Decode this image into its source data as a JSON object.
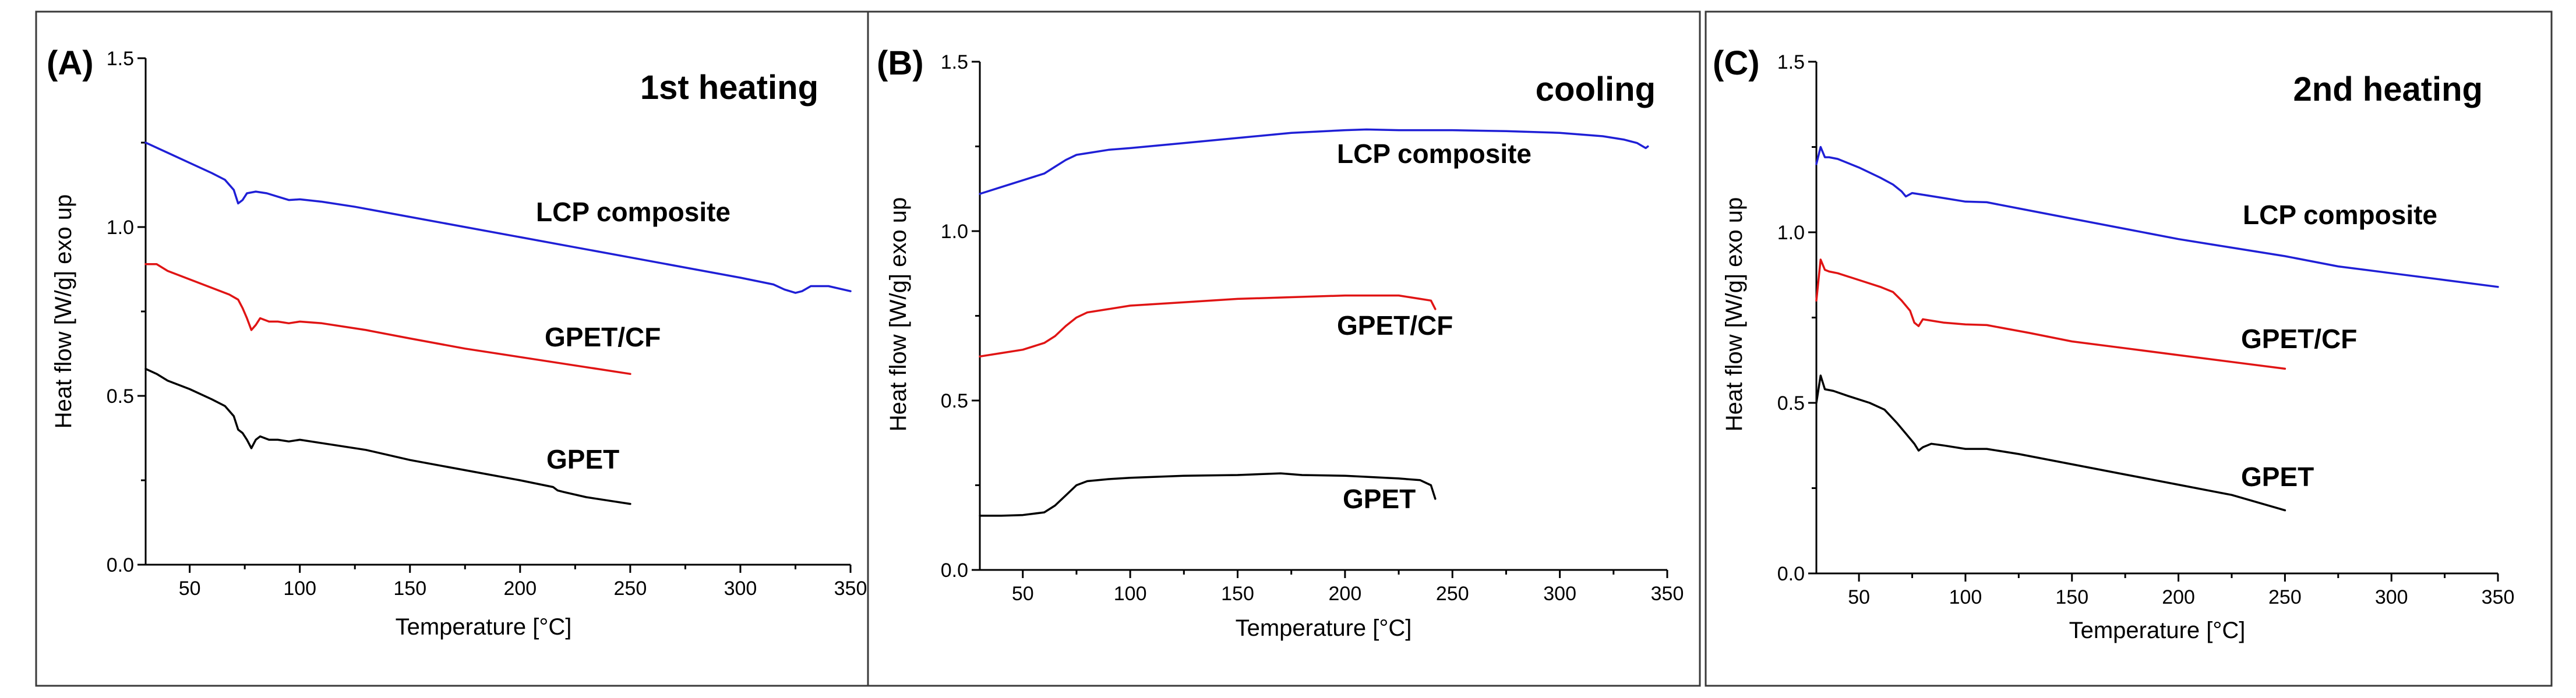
{
  "figure": {
    "colors": {
      "lcp": "#1f1fd6",
      "gpet_cf": "#e01414",
      "gpet": "#000000"
    }
  },
  "chart_data": [
    {
      "type": "line",
      "panel": "(A)",
      "title": "1st heating",
      "xlabel": "Temperature [°C]",
      "ylabel": "Heat flow [W/g] exo up",
      "xlim": [
        30,
        350
      ],
      "ylim": [
        0.0,
        1.5
      ],
      "xticks": [
        "50",
        "100",
        "150",
        "200",
        "250",
        "300",
        "350"
      ],
      "yticks": [
        "0.0",
        "0.5",
        "1.0",
        "1.5"
      ],
      "series": [
        {
          "name": "LCP composite",
          "color": "#1f1fd6",
          "points": [
            [
              30,
              1.25
            ],
            [
              40,
              1.22
            ],
            [
              50,
              1.19
            ],
            [
              60,
              1.16
            ],
            [
              66,
              1.14
            ],
            [
              70,
              1.11
            ],
            [
              72,
              1.07
            ],
            [
              74,
              1.08
            ],
            [
              76,
              1.1
            ],
            [
              80,
              1.105
            ],
            [
              85,
              1.1
            ],
            [
              90,
              1.09
            ],
            [
              95,
              1.08
            ],
            [
              100,
              1.082
            ],
            [
              110,
              1.075
            ],
            [
              125,
              1.06
            ],
            [
              150,
              1.03
            ],
            [
              175,
              1.0
            ],
            [
              200,
              0.97
            ],
            [
              225,
              0.94
            ],
            [
              250,
              0.91
            ],
            [
              275,
              0.88
            ],
            [
              300,
              0.85
            ],
            [
              315,
              0.83
            ],
            [
              320,
              0.815
            ],
            [
              325,
              0.805
            ],
            [
              328,
              0.81
            ],
            [
              332,
              0.825
            ],
            [
              340,
              0.825
            ],
            [
              350,
              0.81
            ]
          ]
        },
        {
          "name": "GPET/CF",
          "color": "#e01414",
          "points": [
            [
              30,
              0.89
            ],
            [
              35,
              0.89
            ],
            [
              40,
              0.87
            ],
            [
              50,
              0.845
            ],
            [
              60,
              0.82
            ],
            [
              68,
              0.8
            ],
            [
              72,
              0.785
            ],
            [
              74,
              0.76
            ],
            [
              76,
              0.73
            ],
            [
              78,
              0.695
            ],
            [
              80,
              0.71
            ],
            [
              82,
              0.73
            ],
            [
              86,
              0.72
            ],
            [
              90,
              0.72
            ],
            [
              95,
              0.715
            ],
            [
              100,
              0.72
            ],
            [
              110,
              0.715
            ],
            [
              130,
              0.695
            ],
            [
              150,
              0.67
            ],
            [
              175,
              0.64
            ],
            [
              200,
              0.615
            ],
            [
              225,
              0.59
            ],
            [
              250,
              0.565
            ]
          ]
        },
        {
          "name": "GPET",
          "color": "#000000",
          "points": [
            [
              30,
              0.58
            ],
            [
              35,
              0.565
            ],
            [
              40,
              0.545
            ],
            [
              50,
              0.52
            ],
            [
              60,
              0.49
            ],
            [
              66,
              0.47
            ],
            [
              70,
              0.44
            ],
            [
              72,
              0.4
            ],
            [
              74,
              0.39
            ],
            [
              76,
              0.37
            ],
            [
              78,
              0.345
            ],
            [
              80,
              0.37
            ],
            [
              82,
              0.38
            ],
            [
              86,
              0.37
            ],
            [
              90,
              0.37
            ],
            [
              95,
              0.365
            ],
            [
              100,
              0.37
            ],
            [
              110,
              0.36
            ],
            [
              130,
              0.34
            ],
            [
              150,
              0.31
            ],
            [
              175,
              0.28
            ],
            [
              200,
              0.25
            ],
            [
              215,
              0.23
            ],
            [
              217,
              0.22
            ],
            [
              220,
              0.215
            ],
            [
              230,
              0.2
            ],
            [
              240,
              0.19
            ],
            [
              250,
              0.18
            ]
          ]
        }
      ]
    },
    {
      "type": "line",
      "panel": "(B)",
      "title": "cooling",
      "xlabel": "Temperature [°C]",
      "ylabel": "Heat flow [W/g] exo up",
      "xlim": [
        30,
        350
      ],
      "ylim": [
        0.0,
        1.5
      ],
      "xticks": [
        "50",
        "100",
        "150",
        "200",
        "250",
        "300",
        "350"
      ],
      "yticks": [
        "0.0",
        "0.5",
        "1.0",
        "1.5"
      ],
      "series": [
        {
          "name": "LCP composite",
          "color": "#1f1fd6",
          "points": [
            [
              30,
              1.11
            ],
            [
              40,
              1.13
            ],
            [
              50,
              1.15
            ],
            [
              60,
              1.17
            ],
            [
              65,
              1.19
            ],
            [
              70,
              1.21
            ],
            [
              75,
              1.225
            ],
            [
              80,
              1.23
            ],
            [
              90,
              1.24
            ],
            [
              100,
              1.245
            ],
            [
              125,
              1.26
            ],
            [
              150,
              1.275
            ],
            [
              175,
              1.29
            ],
            [
              200,
              1.298
            ],
            [
              210,
              1.3
            ],
            [
              225,
              1.298
            ],
            [
              250,
              1.298
            ],
            [
              275,
              1.295
            ],
            [
              300,
              1.29
            ],
            [
              320,
              1.28
            ],
            [
              330,
              1.27
            ],
            [
              336,
              1.26
            ],
            [
              340,
              1.245
            ],
            [
              341,
              1.25
            ]
          ]
        },
        {
          "name": "GPET/CF",
          "color": "#e01414",
          "points": [
            [
              30,
              0.63
            ],
            [
              40,
              0.64
            ],
            [
              50,
              0.65
            ],
            [
              60,
              0.67
            ],
            [
              65,
              0.69
            ],
            [
              70,
              0.72
            ],
            [
              75,
              0.745
            ],
            [
              80,
              0.76
            ],
            [
              90,
              0.77
            ],
            [
              100,
              0.78
            ],
            [
              125,
              0.79
            ],
            [
              150,
              0.8
            ],
            [
              175,
              0.805
            ],
            [
              200,
              0.81
            ],
            [
              225,
              0.81
            ],
            [
              235,
              0.8
            ],
            [
              240,
              0.795
            ],
            [
              242,
              0.77
            ]
          ]
        },
        {
          "name": "GPET",
          "color": "#000000",
          "points": [
            [
              30,
              0.16
            ],
            [
              40,
              0.16
            ],
            [
              50,
              0.162
            ],
            [
              60,
              0.17
            ],
            [
              65,
              0.19
            ],
            [
              70,
              0.22
            ],
            [
              75,
              0.25
            ],
            [
              80,
              0.262
            ],
            [
              90,
              0.268
            ],
            [
              100,
              0.272
            ],
            [
              125,
              0.278
            ],
            [
              150,
              0.28
            ],
            [
              170,
              0.285
            ],
            [
              180,
              0.28
            ],
            [
              200,
              0.278
            ],
            [
              225,
              0.27
            ],
            [
              235,
              0.265
            ],
            [
              240,
              0.25
            ],
            [
              242,
              0.21
            ]
          ]
        }
      ]
    },
    {
      "type": "line",
      "panel": "(C)",
      "title": "2nd heating",
      "xlabel": "Temperature [°C]",
      "ylabel": "Heat flow [W/g] exo up",
      "xlim": [
        30,
        350
      ],
      "ylim": [
        0.0,
        1.5
      ],
      "xticks": [
        "50",
        "100",
        "150",
        "200",
        "250",
        "300",
        "350"
      ],
      "yticks": [
        "0.0",
        "0.5",
        "1.0",
        "1.5"
      ],
      "series": [
        {
          "name": "LCP composite",
          "color": "#1f1fd6",
          "points": [
            [
              30,
              1.2
            ],
            [
              32,
              1.25
            ],
            [
              34,
              1.22
            ],
            [
              36,
              1.22
            ],
            [
              40,
              1.215
            ],
            [
              50,
              1.19
            ],
            [
              60,
              1.16
            ],
            [
              66,
              1.14
            ],
            [
              70,
              1.12
            ],
            [
              72,
              1.105
            ],
            [
              75,
              1.115
            ],
            [
              80,
              1.11
            ],
            [
              90,
              1.1
            ],
            [
              100,
              1.09
            ],
            [
              110,
              1.088
            ],
            [
              125,
              1.07
            ],
            [
              150,
              1.04
            ],
            [
              175,
              1.01
            ],
            [
              200,
              0.98
            ],
            [
              225,
              0.955
            ],
            [
              250,
              0.93
            ],
            [
              275,
              0.9
            ],
            [
              300,
              0.88
            ],
            [
              325,
              0.86
            ],
            [
              350,
              0.84
            ]
          ]
        },
        {
          "name": "GPET/CF",
          "color": "#e01414",
          "points": [
            [
              30,
              0.8
            ],
            [
              32,
              0.92
            ],
            [
              34,
              0.89
            ],
            [
              36,
              0.885
            ],
            [
              40,
              0.88
            ],
            [
              50,
              0.86
            ],
            [
              60,
              0.84
            ],
            [
              66,
              0.825
            ],
            [
              70,
              0.8
            ],
            [
              74,
              0.77
            ],
            [
              76,
              0.735
            ],
            [
              78,
              0.725
            ],
            [
              80,
              0.745
            ],
            [
              85,
              0.74
            ],
            [
              90,
              0.735
            ],
            [
              100,
              0.73
            ],
            [
              110,
              0.728
            ],
            [
              130,
              0.705
            ],
            [
              150,
              0.68
            ],
            [
              175,
              0.66
            ],
            [
              200,
              0.64
            ],
            [
              225,
              0.62
            ],
            [
              250,
              0.6
            ]
          ]
        },
        {
          "name": "GPET",
          "color": "#000000",
          "points": [
            [
              30,
              0.5
            ],
            [
              32,
              0.58
            ],
            [
              34,
              0.54
            ],
            [
              38,
              0.535
            ],
            [
              45,
              0.52
            ],
            [
              55,
              0.5
            ],
            [
              62,
              0.48
            ],
            [
              68,
              0.44
            ],
            [
              72,
              0.41
            ],
            [
              76,
              0.38
            ],
            [
              78,
              0.36
            ],
            [
              80,
              0.37
            ],
            [
              84,
              0.38
            ],
            [
              90,
              0.375
            ],
            [
              100,
              0.365
            ],
            [
              110,
              0.365
            ],
            [
              125,
              0.35
            ],
            [
              150,
              0.32
            ],
            [
              175,
              0.29
            ],
            [
              200,
              0.26
            ],
            [
              225,
              0.23
            ],
            [
              250,
              0.185
            ]
          ]
        }
      ]
    }
  ]
}
